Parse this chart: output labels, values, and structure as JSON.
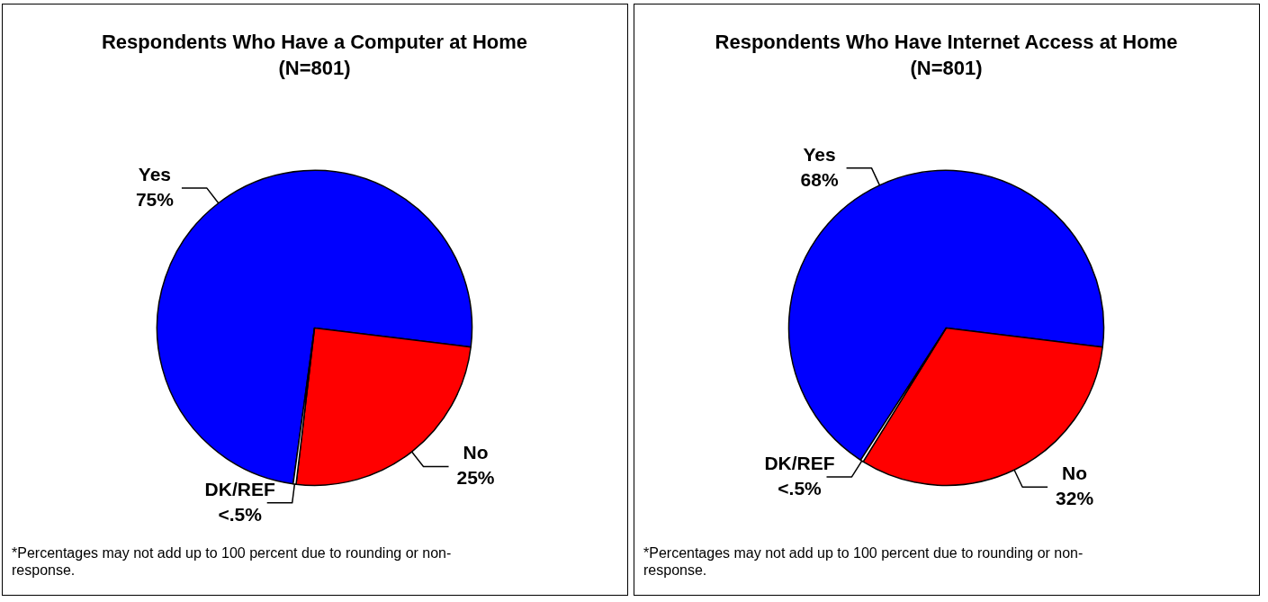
{
  "chart_data": [
    {
      "type": "pie",
      "title": "Respondents Who Have a Computer at Home",
      "subtitle": "(N=801)",
      "categories": [
        "Yes",
        "No",
        "DK/REF"
      ],
      "values": [
        75,
        25,
        0.3
      ],
      "colors": [
        "#0000ff",
        "#ff0000",
        "#ffffff"
      ],
      "value_labels": [
        "75%",
        "25%",
        "<.5%"
      ],
      "legend": false,
      "annotations": [
        "*Percentages may not add up to 100 percent due to rounding or non-response."
      ]
    },
    {
      "type": "pie",
      "title": "Respondents Who Have Internet Access at Home",
      "subtitle": "(N=801)",
      "categories": [
        "Yes",
        "No",
        "DK/REF"
      ],
      "values": [
        68,
        32,
        0.3
      ],
      "colors": [
        "#0000ff",
        "#ff0000",
        "#ffffff"
      ],
      "value_labels": [
        "68%",
        "32%",
        "<.5%"
      ],
      "legend": false,
      "annotations": [
        "*Percentages may not add up to 100 percent due to rounding or non-response."
      ]
    }
  ]
}
